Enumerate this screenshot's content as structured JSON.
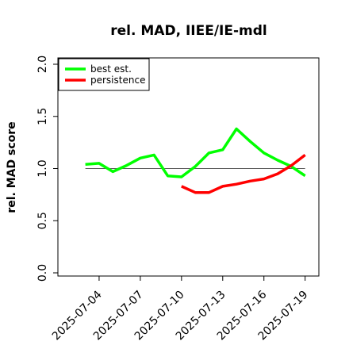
{
  "chart_data": {
    "type": "line",
    "title": "rel. MAD, IIEE/IE-mdl",
    "xlabel": "",
    "ylabel": "rel. MAD score",
    "ylim": [
      0.0,
      2.0
    ],
    "yticks": [
      "0.0",
      "0.5",
      "1.0",
      "1.5",
      "2.0"
    ],
    "xlim": [
      "2025-07-01",
      "2025-07-20"
    ],
    "xticks": [
      "2025-07-04",
      "2025-07-07",
      "2025-07-10",
      "2025-07-13",
      "2025-07-16",
      "2025-07-19"
    ],
    "reference_line": {
      "y": 1.0,
      "from": "2025-07-03",
      "to": "2025-07-19",
      "color": "#555555"
    },
    "grid": false,
    "legend": {
      "position": "top-left"
    },
    "series": [
      {
        "name": "best est.",
        "color": "#00ff00",
        "points": [
          {
            "x": "2025-07-03",
            "y": 1.04
          },
          {
            "x": "2025-07-04",
            "y": 1.05
          },
          {
            "x": "2025-07-05",
            "y": 0.97
          },
          {
            "x": "2025-07-06",
            "y": 1.03
          },
          {
            "x": "2025-07-07",
            "y": 1.1
          },
          {
            "x": "2025-07-08",
            "y": 1.13
          },
          {
            "x": "2025-07-09",
            "y": 0.93
          },
          {
            "x": "2025-07-10",
            "y": 0.92
          },
          {
            "x": "2025-07-11",
            "y": 1.02
          },
          {
            "x": "2025-07-12",
            "y": 1.15
          },
          {
            "x": "2025-07-13",
            "y": 1.18
          },
          {
            "x": "2025-07-14",
            "y": 1.38
          },
          {
            "x": "2025-07-15",
            "y": 1.26
          },
          {
            "x": "2025-07-16",
            "y": 1.15
          },
          {
            "x": "2025-07-17",
            "y": 1.08
          },
          {
            "x": "2025-07-18",
            "y": 1.02
          },
          {
            "x": "2025-07-19",
            "y": 0.93
          }
        ]
      },
      {
        "name": "persistence",
        "color": "#ff0000",
        "points": [
          {
            "x": "2025-07-10",
            "y": 0.83
          },
          {
            "x": "2025-07-11",
            "y": 0.77
          },
          {
            "x": "2025-07-12",
            "y": 0.77
          },
          {
            "x": "2025-07-13",
            "y": 0.83
          },
          {
            "x": "2025-07-14",
            "y": 0.85
          },
          {
            "x": "2025-07-15",
            "y": 0.88
          },
          {
            "x": "2025-07-16",
            "y": 0.9
          },
          {
            "x": "2025-07-17",
            "y": 0.95
          },
          {
            "x": "2025-07-18",
            "y": 1.03
          },
          {
            "x": "2025-07-19",
            "y": 1.13
          }
        ]
      }
    ]
  }
}
